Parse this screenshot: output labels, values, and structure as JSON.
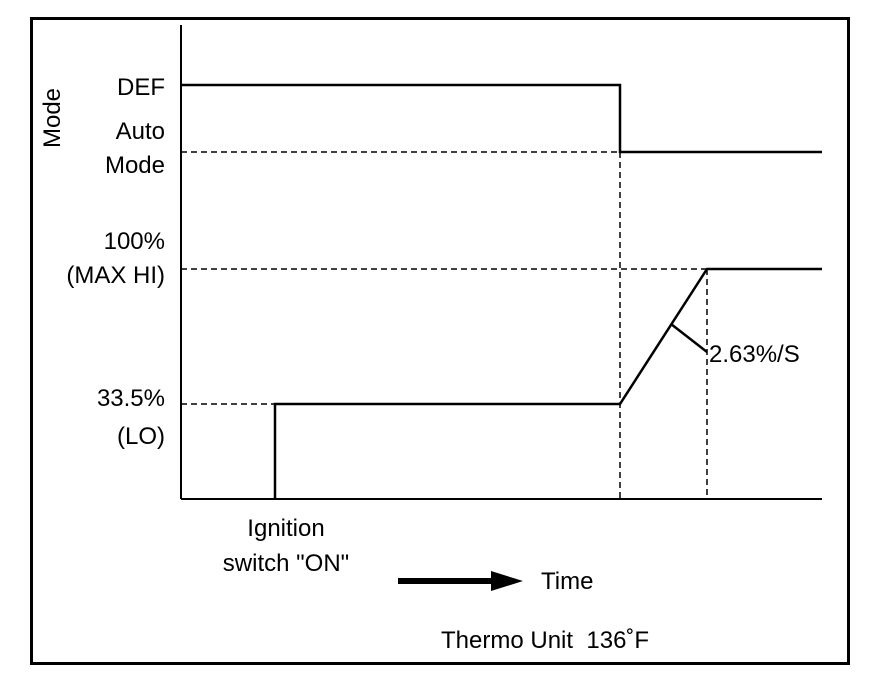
{
  "axis_title": "Mode",
  "mode_levels": {
    "def": "DEF",
    "auto_line1": "Auto",
    "auto_line2": "Mode"
  },
  "blower_levels": {
    "max_line1": "100%",
    "max_line2": "(MAX HI)",
    "lo_line1": "33.5%",
    "lo_line2": "(LO)"
  },
  "ramp_rate": "2.63%/S",
  "ignition": {
    "line1": "Ignition",
    "line2": "switch \"ON\""
  },
  "time_label": "Time",
  "footer": "Thermo Unit  136˚F",
  "chart_data": {
    "type": "line",
    "series": [
      {
        "points": [
          [
            "start",
            "DEF"
          ],
          [
            "t1",
            "DEF"
          ],
          [
            "t1",
            "Auto Mode"
          ],
          [
            "end",
            "Auto Mode"
          ]
        ]
      },
      {
        "points": [
          [
            "ignition ON",
            0
          ],
          [
            "ignition ON",
            33.5
          ],
          [
            "t1",
            33.5
          ],
          [
            "t2",
            100
          ],
          [
            "end",
            100
          ]
        ]
      }
    ],
    "annotations": [
      "2.63%/S"
    ]
  }
}
